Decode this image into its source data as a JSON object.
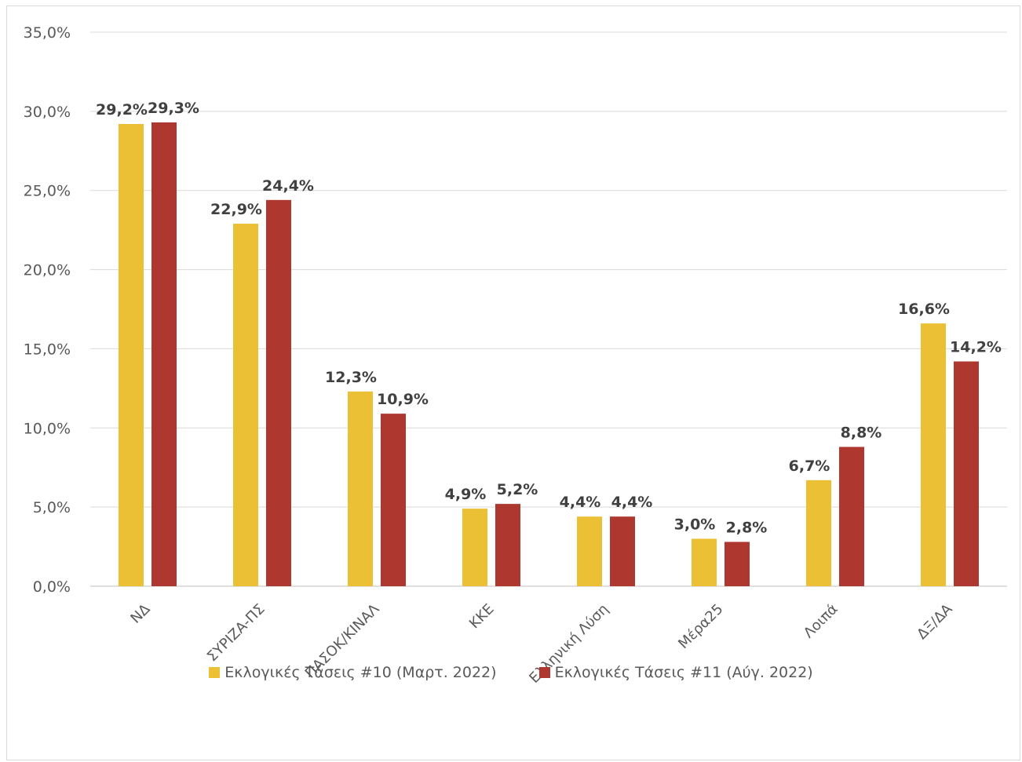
{
  "chart_data": {
    "type": "bar",
    "categories": [
      "ΝΔ",
      "ΣΥΡΙΖΑ-ΠΣ",
      "ΠΑΣΟΚ/ΚΙΝΑΛ",
      "ΚΚΕ",
      "Ελληνική Λύση",
      "Μέρα25",
      "Λοιπά",
      "ΔΞ/ΔΑ"
    ],
    "series": [
      {
        "name": "Εκλογικές Τάσεις #10 (Μαρτ. 2022)",
        "color": "#EBC034",
        "values": [
          29.2,
          22.9,
          12.3,
          4.9,
          4.4,
          3.0,
          6.7,
          16.6
        ],
        "labels": [
          "29,2%",
          "22,9%",
          "12,3%",
          "4,9%",
          "4,4%",
          "3,0%",
          "6,7%",
          "16,6%"
        ]
      },
      {
        "name": "Εκλογικές Τάσεις #11 (Αύγ. 2022)",
        "color": "#AE3830",
        "values": [
          29.3,
          24.4,
          10.9,
          5.2,
          4.4,
          2.8,
          8.8,
          14.2
        ],
        "labels": [
          "29,3%",
          "24,4%",
          "10,9%",
          "5,2%",
          "4,4%",
          "2,8%",
          "8,8%",
          "14,2%"
        ]
      }
    ],
    "ylim": [
      0,
      35
    ],
    "yticks": [
      "0,0%",
      "5,0%",
      "10,0%",
      "15,0%",
      "20,0%",
      "25,0%",
      "30,0%",
      "35,0%"
    ],
    "grid": true,
    "legend": "bottom"
  }
}
